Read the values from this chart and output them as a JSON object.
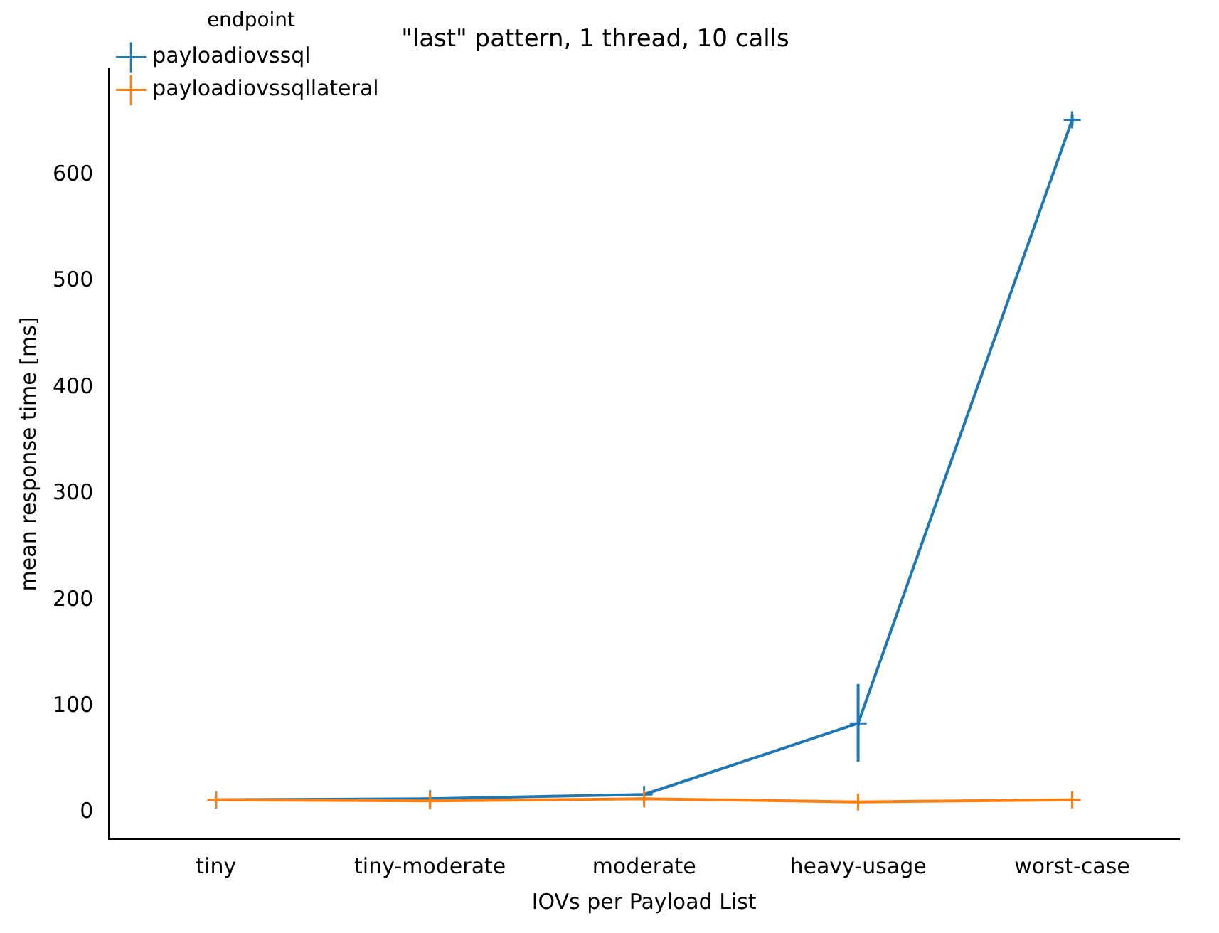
{
  "chart_data": {
    "type": "line",
    "title": "\"last\" pattern, 1 thread, 10 calls",
    "xlabel": "IOVs per Payload List",
    "ylabel": "mean response time [ms]",
    "legend_title": "endpoint",
    "legend": "top left",
    "marker": "cross",
    "line_style": "solid",
    "grid": false,
    "categories": [
      "tiny",
      "tiny-moderate",
      "moderate",
      "heavy-usage",
      "worst-case"
    ],
    "series": [
      {
        "name": "payloadiovssql",
        "color": "#1f77b4",
        "values": [
          12,
          13,
          17,
          84,
          652
        ],
        "errors": [
          null,
          null,
          null,
          [
            48,
            121
          ],
          [
            647,
            657
          ]
        ]
      },
      {
        "name": "payloadiovssqllateral",
        "color": "#ff7f0e",
        "values": [
          12,
          11,
          13,
          10,
          12
        ]
      }
    ],
    "ylim": [
      -25,
      700
    ],
    "yticks": [
      0,
      100,
      200,
      300,
      400,
      500,
      600
    ]
  }
}
